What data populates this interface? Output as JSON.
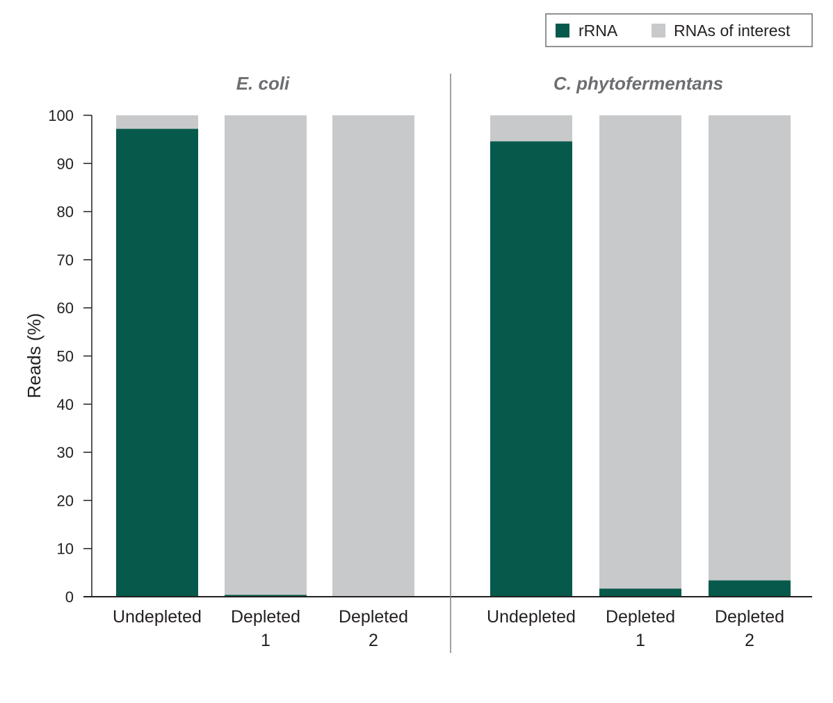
{
  "chart_data": {
    "type": "bar",
    "stacked": true,
    "ylabel": "Reads (%)",
    "ylim": [
      0,
      100
    ],
    "yticks": [
      0,
      10,
      20,
      30,
      40,
      50,
      60,
      70,
      80,
      90,
      100
    ],
    "legend": {
      "placement": "top-right",
      "items": [
        {
          "name": "rRNA",
          "color": "#075a4b"
        },
        {
          "name": "RNAs of interest",
          "color": "#c8c9cb"
        }
      ]
    },
    "panels": [
      {
        "title": "E. coli",
        "categories": [
          [
            "Undepleted"
          ],
          [
            "Depleted",
            "1"
          ],
          [
            "Depleted",
            "2"
          ]
        ],
        "series": [
          {
            "name": "rRNA",
            "values": [
              97.2,
              0.4,
              0.1
            ]
          },
          {
            "name": "RNAs of interest",
            "values": [
              2.8,
              99.6,
              99.9
            ]
          }
        ]
      },
      {
        "title": "C. phytofermentans",
        "categories": [
          [
            "Undepleted"
          ],
          [
            "Depleted",
            "1"
          ],
          [
            "Depleted",
            "2"
          ]
        ],
        "series": [
          {
            "name": "rRNA",
            "values": [
              94.6,
              1.7,
              3.4
            ]
          },
          {
            "name": "RNAs of interest",
            "values": [
              5.4,
              98.3,
              96.6
            ]
          }
        ]
      }
    ]
  }
}
